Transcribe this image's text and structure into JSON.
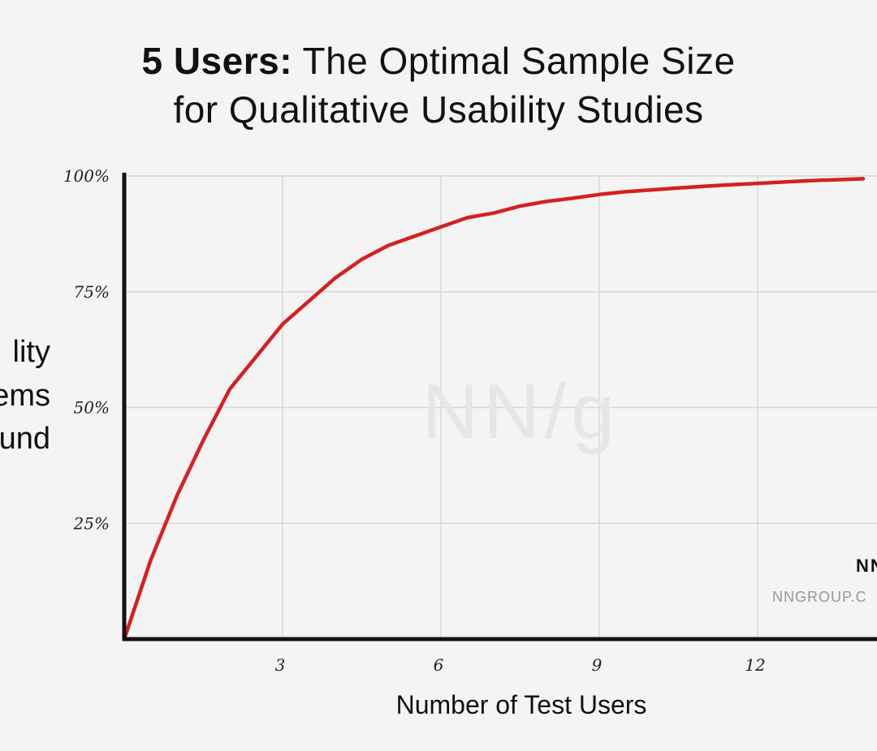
{
  "chart_data": {
    "type": "line",
    "title_bold": "5 Users:",
    "title_rest": "The Optimal Sample Size",
    "title_line2": "for Qualitative Usability Studies",
    "xlabel": "Number of Test Users",
    "ylabel_lines": [
      "lity",
      "ems",
      "und"
    ],
    "x_ticks": [
      3,
      6,
      9,
      12
    ],
    "x_tick_labels": [
      "3",
      "6",
      "9",
      "12"
    ],
    "y_ticks": [
      25,
      50,
      75,
      100
    ],
    "y_tick_labels": [
      "25%",
      "50%",
      "75%",
      "100%"
    ],
    "xlim": [
      0,
      14
    ],
    "ylim": [
      0,
      100
    ],
    "grid": true,
    "watermark": "NN/g",
    "brand_text": "NN",
    "site_text": "NNGROUP.C",
    "colors": {
      "line": "#d62020",
      "axis": "#111111",
      "grid": "#d8d8d8",
      "background": "#f4f4f4"
    },
    "series": [
      {
        "x": [
          0,
          0.5,
          1,
          1.5,
          2,
          2.5,
          3,
          3.5,
          4,
          4.5,
          5,
          5.5,
          6,
          6.5,
          7,
          7.5,
          8,
          8.5,
          9,
          9.5,
          10,
          10.5,
          11,
          11.5,
          12,
          12.5,
          13,
          13.5,
          14
        ],
        "y": [
          0,
          17,
          31,
          43,
          54,
          61,
          68,
          73,
          78,
          82,
          85,
          87,
          89,
          91,
          92,
          93.5,
          94.5,
          95.2,
          96,
          96.6,
          97,
          97.4,
          97.8,
          98.1,
          98.4,
          98.7,
          99,
          99.2,
          99.4
        ]
      }
    ]
  }
}
